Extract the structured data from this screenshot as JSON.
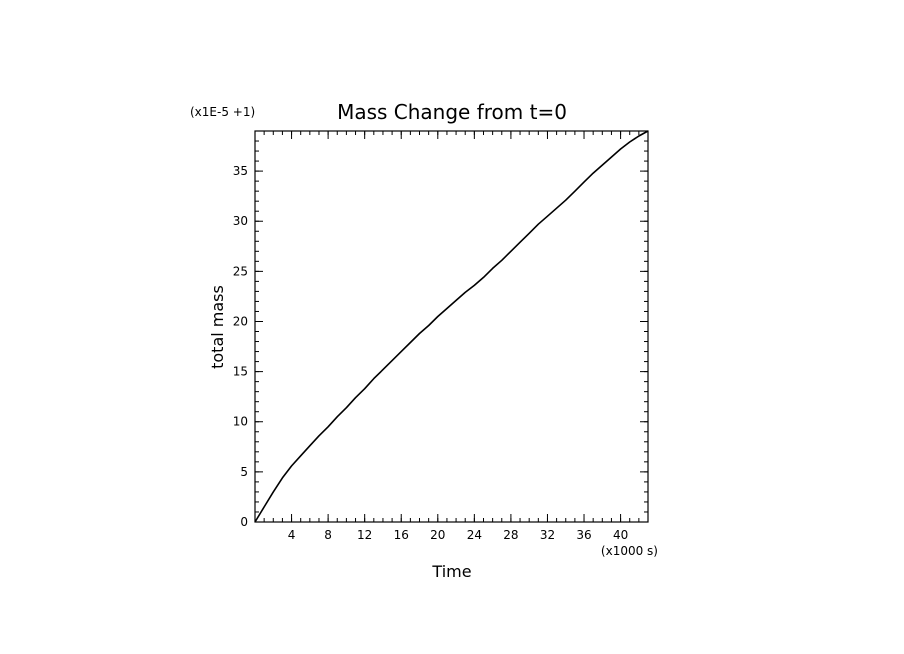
{
  "chart_data": {
    "type": "line",
    "title": "Mass Change from t=0",
    "xlabel": "Time",
    "ylabel": "total mass",
    "x_scale_note": "(x1000 s)",
    "y_scale_note": "(x1E-5 +1)",
    "xlim": [
      0,
      43
    ],
    "ylim": [
      0,
      39
    ],
    "x_ticks": [
      "4",
      "8",
      "12",
      "16",
      "20",
      "24",
      "28",
      "32",
      "36",
      "40"
    ],
    "y_ticks": [
      "0",
      "5",
      "10",
      "15",
      "20",
      "25",
      "30",
      "35"
    ],
    "grid": false,
    "series": [
      {
        "color": "#000000",
        "x": [
          0,
          1,
          2,
          3,
          4,
          5,
          6,
          7,
          8,
          9,
          10,
          11,
          12,
          13,
          14,
          15,
          16,
          17,
          18,
          19,
          20,
          21,
          22,
          23,
          24,
          25,
          26,
          27,
          28,
          29,
          30,
          31,
          32,
          33,
          34,
          35,
          36,
          37,
          38,
          39,
          40,
          41,
          42,
          43
        ],
        "y": [
          0,
          1.5,
          3.0,
          4.4,
          5.6,
          6.6,
          7.6,
          8.6,
          9.5,
          10.5,
          11.4,
          12.4,
          13.3,
          14.3,
          15.2,
          16.1,
          17.0,
          17.9,
          18.8,
          19.6,
          20.5,
          21.3,
          22.1,
          22.9,
          23.6,
          24.4,
          25.3,
          26.1,
          27.0,
          27.9,
          28.8,
          29.7,
          30.5,
          31.3,
          32.1,
          33.0,
          33.9,
          34.8,
          35.6,
          36.4,
          37.2,
          37.9,
          38.5,
          39.0
        ]
      }
    ]
  }
}
